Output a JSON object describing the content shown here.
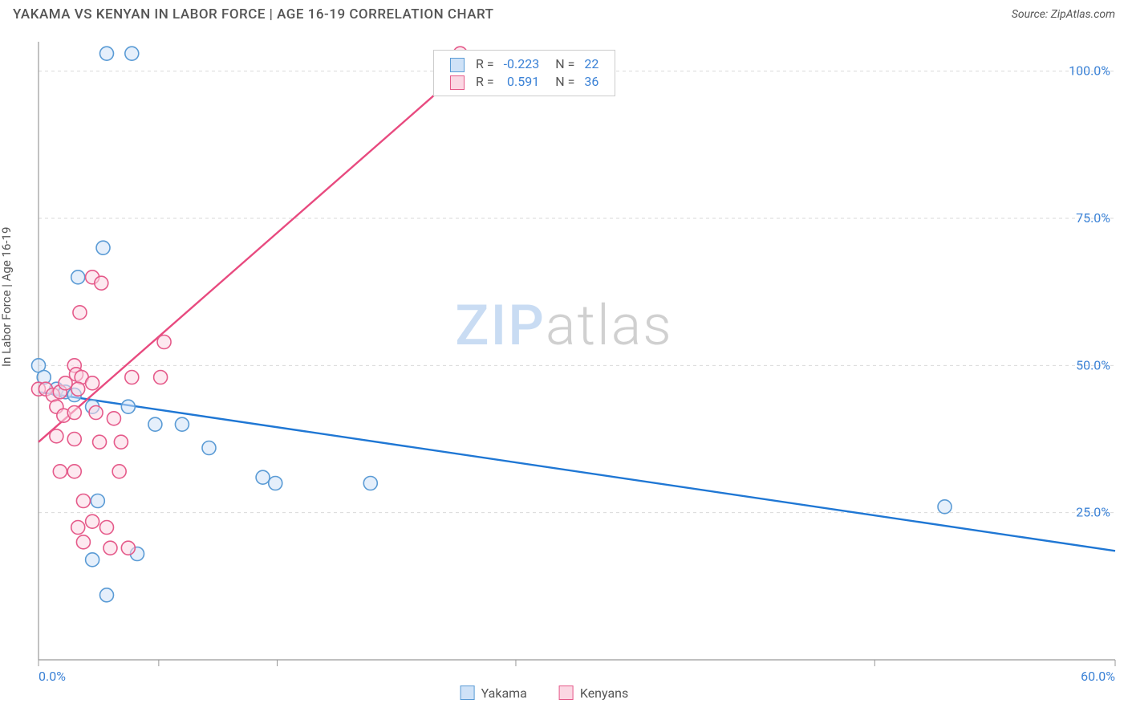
{
  "header": {
    "title": "YAKAMA VS KENYAN IN LABOR FORCE | AGE 16-19 CORRELATION CHART",
    "source": "Source: ZipAtlas.com"
  },
  "chart": {
    "type": "scatter",
    "ylabel": "In Labor Force | Age 16-19",
    "xlim": [
      0,
      60
    ],
    "ylim": [
      0,
      105
    ],
    "xtick_positions": [
      0,
      6.7,
      13.3,
      26.6,
      46.6,
      60
    ],
    "ytick_positions": [
      25,
      50,
      75,
      100
    ],
    "xaxis_labels": [
      {
        "v": 0,
        "t": "0.0%"
      },
      {
        "v": 60,
        "t": "60.0%"
      }
    ],
    "yaxis_labels": [
      {
        "v": 25,
        "t": "25.0%"
      },
      {
        "v": 50,
        "t": "50.0%"
      },
      {
        "v": 75,
        "t": "75.0%"
      },
      {
        "v": 100,
        "t": "100.0%"
      }
    ],
    "grid_color": "#d9d9d9",
    "axis_color": "#999999",
    "background_color": "#ffffff",
    "label_color_blue": "#3b82d6",
    "label_color_gray": "#555555",
    "series": [
      {
        "name": "Yakama",
        "color_fill": "#cfe2f7",
        "color_stroke": "#5a9bd5",
        "regression_color": "#1f77d4",
        "R": -0.223,
        "N": 22,
        "line": [
          [
            0,
            45.5
          ],
          [
            60,
            18.5
          ]
        ],
        "points": [
          [
            3.8,
            103
          ],
          [
            5.2,
            103
          ],
          [
            3.6,
            70
          ],
          [
            2.2,
            65
          ],
          [
            0.0,
            50
          ],
          [
            0.3,
            48
          ],
          [
            1.0,
            46
          ],
          [
            1.5,
            45.5
          ],
          [
            2.0,
            45
          ],
          [
            3.0,
            43
          ],
          [
            5.0,
            43
          ],
          [
            6.5,
            40
          ],
          [
            8.0,
            40
          ],
          [
            9.5,
            36
          ],
          [
            12.5,
            31
          ],
          [
            13.2,
            30
          ],
          [
            18.5,
            30
          ],
          [
            3.3,
            27
          ],
          [
            3.0,
            17
          ],
          [
            5.5,
            18
          ],
          [
            3.8,
            11
          ],
          [
            50.5,
            26
          ]
        ]
      },
      {
        "name": "Kenyans",
        "color_fill": "#fbd7e3",
        "color_stroke": "#e55a8a",
        "regression_color": "#e84a7f",
        "R": 0.591,
        "N": 36,
        "line": [
          [
            0,
            37
          ],
          [
            24.7,
            103
          ]
        ],
        "points": [
          [
            23.5,
            103
          ],
          [
            3.0,
            65
          ],
          [
            3.5,
            64
          ],
          [
            2.3,
            59
          ],
          [
            7.0,
            54
          ],
          [
            2.0,
            50
          ],
          [
            2.1,
            48.5
          ],
          [
            2.4,
            48
          ],
          [
            0.0,
            46
          ],
          [
            0.4,
            46
          ],
          [
            0.8,
            45
          ],
          [
            1.2,
            45.5
          ],
          [
            1.5,
            47
          ],
          [
            2.2,
            46
          ],
          [
            3.0,
            47
          ],
          [
            5.2,
            48
          ],
          [
            6.8,
            48
          ],
          [
            1.0,
            43
          ],
          [
            1.4,
            41.5
          ],
          [
            2.0,
            42
          ],
          [
            3.2,
            42
          ],
          [
            4.2,
            41
          ],
          [
            1.0,
            38
          ],
          [
            2.0,
            37.5
          ],
          [
            3.4,
            37
          ],
          [
            4.6,
            37
          ],
          [
            1.2,
            32
          ],
          [
            2.0,
            32
          ],
          [
            4.5,
            32
          ],
          [
            2.5,
            27
          ],
          [
            3.0,
            23.5
          ],
          [
            3.8,
            22.5
          ],
          [
            2.2,
            22.5
          ],
          [
            4.0,
            19
          ],
          [
            5.0,
            19
          ],
          [
            2.5,
            20
          ]
        ]
      }
    ],
    "legend": {
      "label_R": "R =",
      "label_N": "N ="
    },
    "bottom_legend": [
      "Yakama",
      "Kenyans"
    ],
    "watermark": [
      "ZIP",
      "atlas"
    ]
  }
}
